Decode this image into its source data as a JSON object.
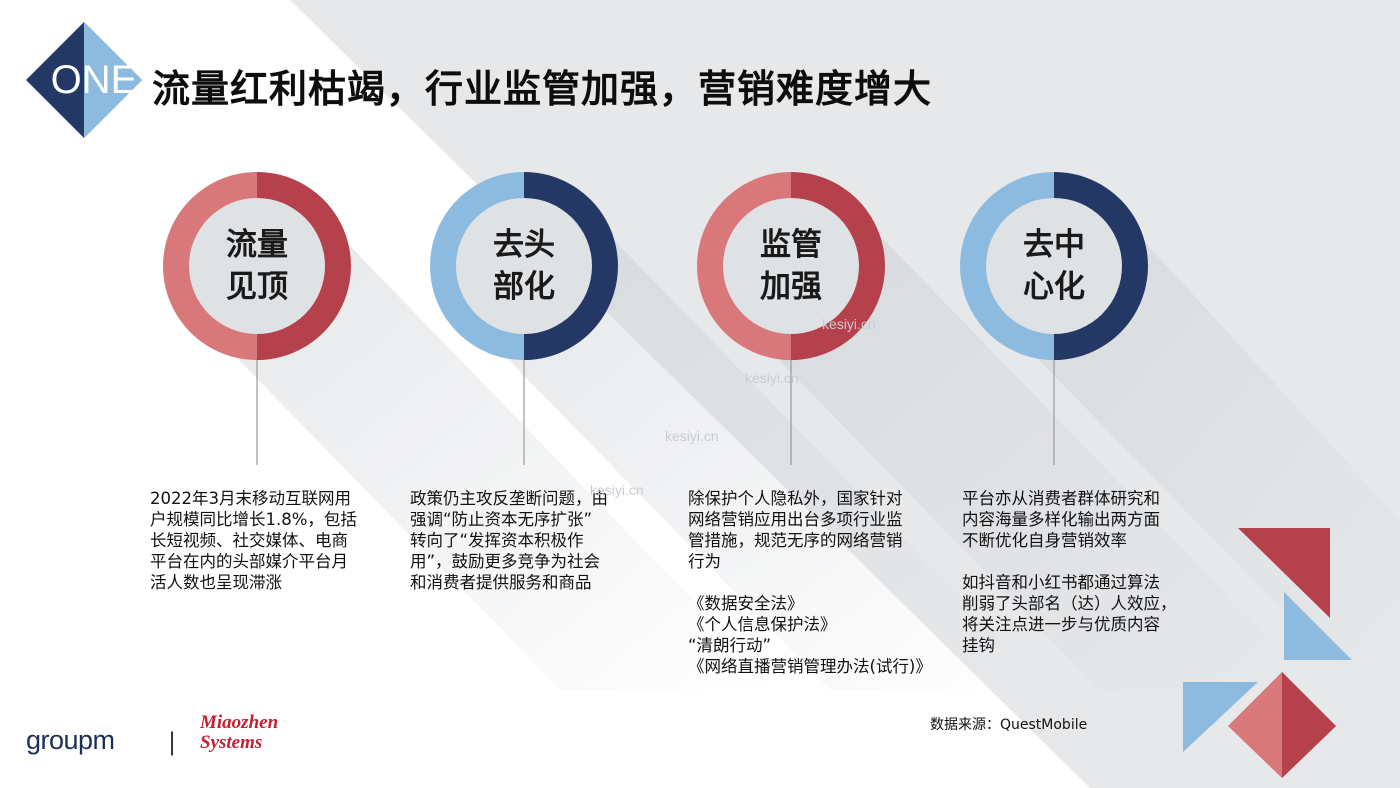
{
  "header": {
    "badge": "ONE",
    "title": "流量红利枯竭，行业监管加强，营销难度增大"
  },
  "circles": [
    {
      "line1": "流量",
      "line2": "见顶",
      "theme": "red",
      "desc": [
        "2022年3月末移动互联网用",
        "户规模同比增长1.8%，包括",
        "长短视频、社交媒体、电商",
        "平台在内的头部媒介平台月",
        "活人数也呈现滞涨"
      ]
    },
    {
      "line1": "去头",
      "line2": "部化",
      "theme": "blue",
      "desc": [
        "政策仍主攻反垄断问题，由",
        "强调“防止资本无序扩张”",
        "转向了“发挥资本积极作",
        "用”，鼓励更多竞争为社会",
        "和消费者提供服务和商品"
      ]
    },
    {
      "line1": "监管",
      "line2": "加强",
      "theme": "red",
      "desc": [
        "除保护个人隐私外，国家针对",
        "网络营销应用出台多项行业监",
        "管措施，规范无序的网络营销",
        "行为",
        "",
        "《数据安全法》",
        "《个人信息保护法》",
        "“清朗行动”",
        "《网络直播营销管理办法(试行)》"
      ]
    },
    {
      "line1": "去中",
      "line2": "心化",
      "theme": "blue",
      "desc": [
        "平台亦从消费者群体研究和",
        "内容海量多样化输出两方面",
        "不断优化自身营销效率",
        "",
        "如抖音和小红书都通过算法",
        "削弱了头部名（达）人效应，",
        "将关注点进一步与优质内容",
        "挂钩"
      ]
    }
  ],
  "source": "数据来源：QuestMobile",
  "logos": {
    "groupm": "groupm",
    "separator": "|",
    "miaozhen_line1": "Miaozhen",
    "miaozhen_line2": "Systems"
  },
  "watermark": "kesiyi.cn",
  "colors": {
    "red_dark": "#b5414c",
    "red_light": "#d8787a",
    "navy": "#243865",
    "blue_light": "#8dbbe0",
    "inner": "#dfe2e5"
  }
}
